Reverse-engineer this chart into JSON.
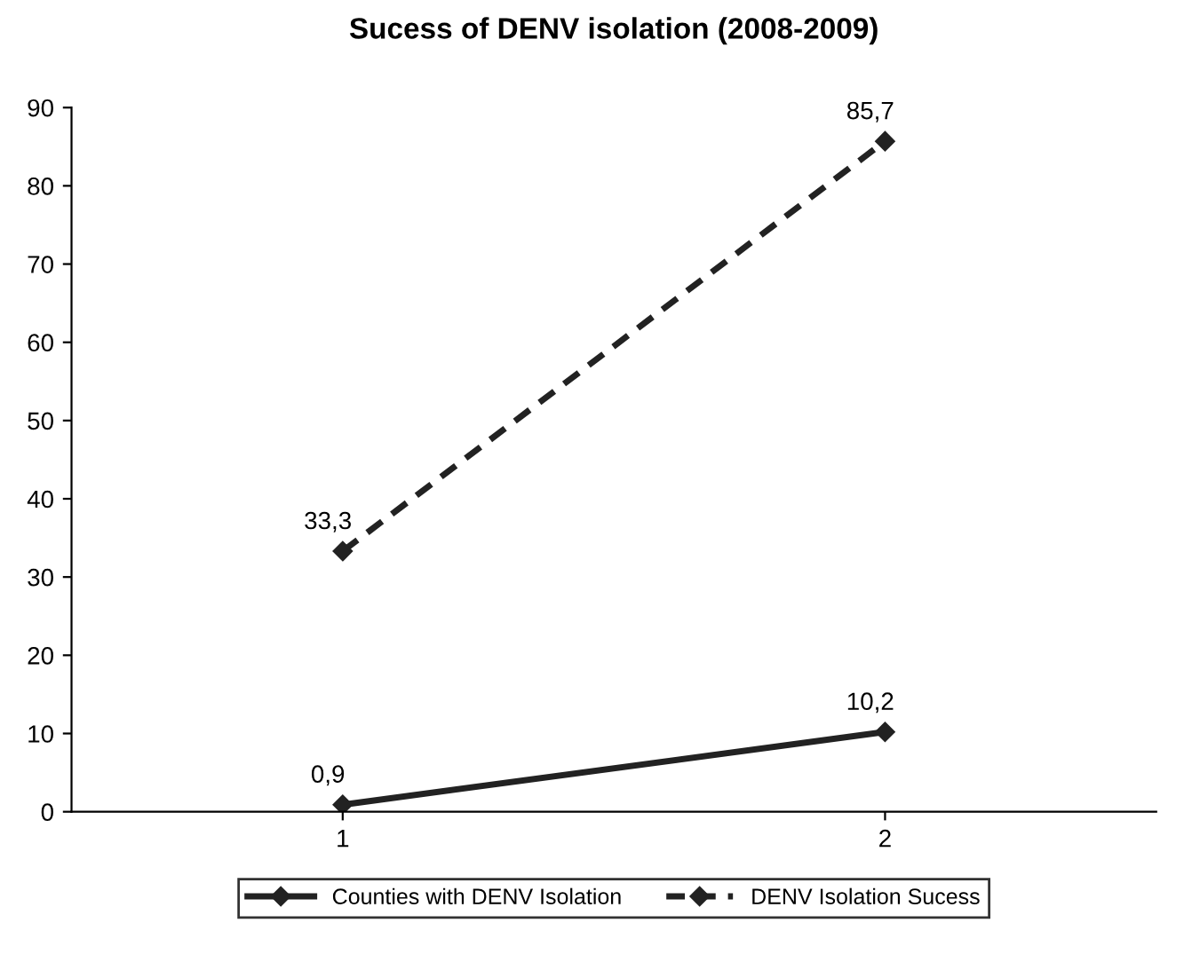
{
  "chart_data": {
    "type": "line",
    "title": "Sucess of DENV isolation (2008-2009)",
    "categories": [
      "1",
      "2"
    ],
    "series": [
      {
        "name": "Counties with DENV Isolation",
        "color": "#222222",
        "values": [
          0.9,
          10.2
        ],
        "value_labels": [
          "0,9",
          "10,2"
        ],
        "line_style": "solid"
      },
      {
        "name": "DENV Isolation Sucess",
        "color": "#222222",
        "values": [
          33.3,
          85.7
        ],
        "value_labels": [
          "33,3",
          "85,7"
        ],
        "line_style": "dashed"
      }
    ],
    "ylim": [
      0,
      90
    ],
    "yticks": [
      0,
      10,
      20,
      30,
      40,
      50,
      60,
      70,
      80,
      90
    ],
    "marker": "diamond",
    "legend": "bottom",
    "grid": false
  }
}
